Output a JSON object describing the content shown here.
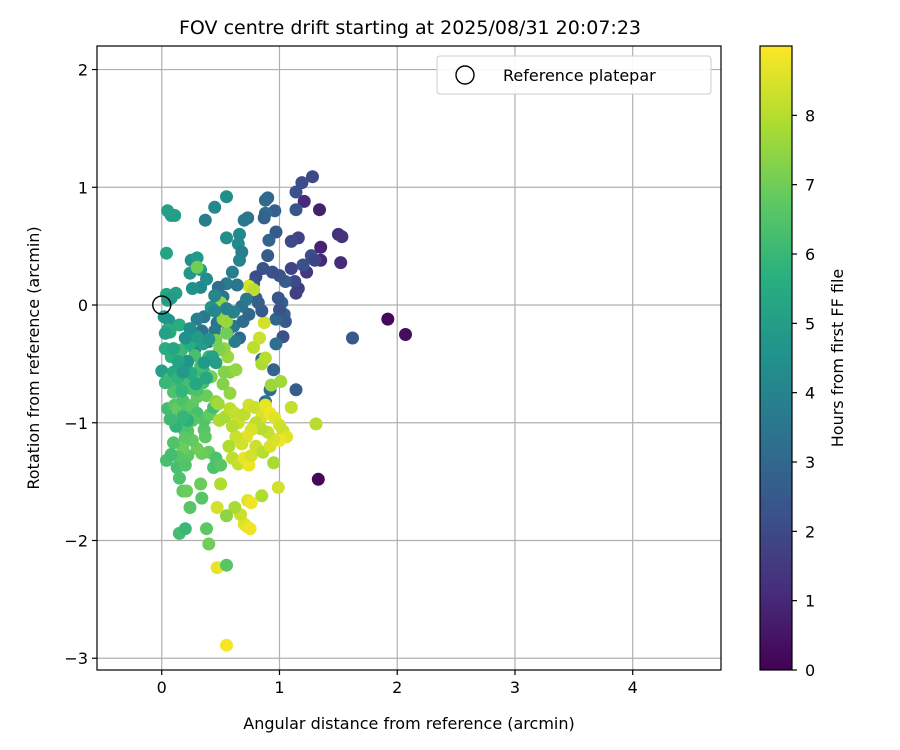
{
  "chart_data": {
    "type": "scatter",
    "title": "FOV centre drift starting at 2025/08/31 20:07:23",
    "xlabel": "Angular distance from reference (arcmin)",
    "ylabel": "Rotation from reference (arcmin)",
    "xlim": [
      -0.55,
      4.75
    ],
    "ylim": [
      -3.1,
      2.2
    ],
    "xticks": [
      0,
      1,
      2,
      3,
      4
    ],
    "yticks": [
      -3,
      -2,
      -1,
      0,
      1,
      2
    ],
    "grid": true,
    "legend": {
      "placement": "top-right",
      "entries": [
        {
          "label": "Reference platepar",
          "marker": "open-circle",
          "x": 0,
          "y": 0
        }
      ]
    },
    "colorbar": {
      "label": "Hours from first FF file",
      "colormap": "viridis",
      "range": [
        0,
        9
      ],
      "ticks": [
        0,
        1,
        2,
        3,
        4,
        5,
        6,
        7,
        8
      ],
      "color_stops": [
        "#440154",
        "#472d7b",
        "#3b528b",
        "#2c728e",
        "#21918c",
        "#28ae80",
        "#5ec962",
        "#addc30",
        "#fde725"
      ]
    },
    "points": [
      [
        1.92,
        -0.12,
        0.2
      ],
      [
        2.07,
        -0.25,
        0.3
      ],
      [
        1.33,
        -1.48,
        0.2
      ],
      [
        1.34,
        0.81,
        0.8
      ],
      [
        1.35,
        0.49,
        0.9
      ],
      [
        1.35,
        0.38,
        1.0
      ],
      [
        1.5,
        0.6,
        1.2
      ],
      [
        1.53,
        0.58,
        1.3
      ],
      [
        1.52,
        0.36,
        1.1
      ],
      [
        1.21,
        0.88,
        1.1
      ],
      [
        1.28,
        1.09,
        2.0
      ],
      [
        1.19,
        1.04,
        2.1
      ],
      [
        1.14,
        0.96,
        2.3
      ],
      [
        1.14,
        0.81,
        2.4
      ],
      [
        1.16,
        0.57,
        1.8
      ],
      [
        1.1,
        0.54,
        2.0
      ],
      [
        1.62,
        -0.28,
        2.5
      ],
      [
        1.23,
        0.28,
        1.5
      ],
      [
        1.16,
        0.14,
        1.6
      ],
      [
        1.1,
        0.31,
        1.8
      ],
      [
        1.13,
        0.2,
        2.0
      ],
      [
        1.2,
        0.34,
        2.2
      ],
      [
        1.27,
        0.42,
        2.1
      ],
      [
        1.3,
        0.38,
        1.9
      ],
      [
        1.14,
        0.1,
        1.7
      ],
      [
        1.05,
        0.2,
        2.6
      ],
      [
        1.0,
        0.25,
        2.4
      ],
      [
        0.94,
        0.28,
        2.2
      ],
      [
        0.97,
        0.62,
        2.5
      ],
      [
        0.96,
        0.8,
        2.7
      ],
      [
        0.9,
        0.91,
        3.0
      ],
      [
        0.88,
        0.89,
        3.1
      ],
      [
        0.88,
        0.78,
        3.2
      ],
      [
        0.87,
        0.74,
        2.8
      ],
      [
        0.91,
        0.55,
        2.9
      ],
      [
        0.9,
        0.42,
        2.6
      ],
      [
        0.86,
        0.31,
        2.3
      ],
      [
        0.8,
        0.24,
        2.1
      ],
      [
        0.78,
        0.18,
        2.4
      ],
      [
        1.02,
        0.02,
        2.8
      ],
      [
        1.04,
        -0.08,
        2.9
      ],
      [
        1.05,
        -0.14,
        2.5
      ],
      [
        1.03,
        -0.27,
        2.2
      ],
      [
        0.97,
        -0.12,
        3.0
      ],
      [
        0.97,
        -0.33,
        3.3
      ],
      [
        1.14,
        -0.72,
        2.6
      ],
      [
        0.95,
        -0.55,
        2.9
      ],
      [
        0.92,
        -0.72,
        3.1
      ],
      [
        0.88,
        -0.82,
        3.4
      ],
      [
        0.85,
        -0.46,
        3.3
      ],
      [
        0.8,
        0.06,
        2.5
      ],
      [
        0.73,
        0.74,
        3.4
      ],
      [
        0.7,
        0.72,
        3.6
      ],
      [
        0.66,
        0.6,
        4.2
      ],
      [
        0.65,
        0.52,
        4.3
      ],
      [
        0.55,
        0.92,
        4.4
      ],
      [
        0.45,
        0.83,
        4.2
      ],
      [
        0.37,
        0.72,
        3.8
      ],
      [
        0.55,
        0.57,
        4.4
      ],
      [
        0.66,
        0.38,
        4.0
      ],
      [
        0.6,
        0.28,
        3.8
      ],
      [
        0.55,
        0.18,
        3.7
      ],
      [
        0.48,
        0.15,
        3.2
      ],
      [
        0.52,
        0.07,
        3.5
      ],
      [
        0.56,
        -0.05,
        3.3
      ],
      [
        0.61,
        -0.18,
        3.6
      ],
      [
        0.69,
        -0.14,
        3.2
      ],
      [
        0.74,
        -0.08,
        3.0
      ],
      [
        0.66,
        -0.28,
        3.1
      ],
      [
        0.62,
        -0.31,
        3.7
      ],
      [
        0.56,
        -0.22,
        3.9
      ],
      [
        0.47,
        -0.15,
        3.4
      ],
      [
        0.45,
        -0.22,
        3.6
      ],
      [
        0.4,
        -0.31,
        3.8
      ],
      [
        0.36,
        -0.1,
        3.6
      ],
      [
        0.34,
        -0.22,
        3.4
      ],
      [
        0.3,
        -0.12,
        3.9
      ],
      [
        0.28,
        -0.38,
        4.3
      ],
      [
        0.33,
        0.15,
        4.2
      ],
      [
        0.26,
        0.14,
        4.5
      ],
      [
        0.25,
        0.38,
        4.5
      ],
      [
        0.3,
        0.4,
        4.8
      ],
      [
        0.33,
        0.3,
        4.9
      ],
      [
        0.38,
        0.22,
        4.4
      ],
      [
        0.24,
        0.27,
        4.7
      ],
      [
        0.08,
        0.76,
        5.1
      ],
      [
        0.11,
        0.76,
        5.0
      ],
      [
        0.05,
        0.8,
        5.1
      ],
      [
        0.04,
        0.44,
        5.2
      ],
      [
        0.12,
        0.1,
        5.1
      ],
      [
        0.04,
        0.09,
        5.3
      ],
      [
        0.05,
        0.04,
        5.0
      ],
      [
        0.08,
        0.06,
        4.9
      ],
      [
        0.02,
        -0.1,
        4.7
      ],
      [
        0.06,
        -0.13,
        4.6
      ],
      [
        0.05,
        -0.21,
        5.6
      ],
      [
        0.15,
        -0.17,
        5.6
      ],
      [
        0.03,
        -0.37,
        5.6
      ],
      [
        0.08,
        -0.44,
        5.7
      ],
      [
        0.0,
        -0.56,
        5.0
      ],
      [
        0.12,
        -0.56,
        5.5
      ],
      [
        0.17,
        -0.38,
        6.0
      ],
      [
        0.24,
        -0.33,
        5.6
      ],
      [
        0.28,
        -0.43,
        6.3
      ],
      [
        0.21,
        -0.53,
        6.1
      ],
      [
        0.17,
        -0.46,
        6.1
      ],
      [
        0.2,
        -0.58,
        6.5
      ],
      [
        0.25,
        -0.71,
        6.3
      ],
      [
        0.23,
        -0.62,
        6.2
      ],
      [
        0.16,
        -0.67,
        6.3
      ],
      [
        0.12,
        -0.7,
        6.1
      ],
      [
        0.1,
        -0.74,
        6.4
      ],
      [
        0.07,
        -0.62,
        6.2
      ],
      [
        0.03,
        -0.66,
        6.0
      ],
      [
        0.05,
        -0.88,
        6.2
      ],
      [
        0.07,
        -0.97,
        6.4
      ],
      [
        0.11,
        -0.85,
        6.6
      ],
      [
        0.14,
        -0.88,
        6.8
      ],
      [
        0.18,
        -0.81,
        6.4
      ],
      [
        0.22,
        -0.9,
        6.5
      ],
      [
        0.26,
        -0.85,
        6.7
      ],
      [
        0.3,
        -0.92,
        6.3
      ],
      [
        0.3,
        -0.78,
        6.8
      ],
      [
        0.32,
        -0.63,
        6.6
      ],
      [
        0.35,
        -0.66,
        6.2
      ],
      [
        0.36,
        -0.57,
        6.0
      ],
      [
        0.38,
        -0.77,
        6.9
      ],
      [
        0.36,
        -0.98,
        6.5
      ],
      [
        0.36,
        -1.06,
        6.6
      ],
      [
        0.37,
        -1.12,
        6.7
      ],
      [
        0.4,
        -1.25,
        6.8
      ],
      [
        0.34,
        -1.26,
        6.9
      ],
      [
        0.3,
        -1.22,
        7.0
      ],
      [
        0.26,
        -1.15,
        6.8
      ],
      [
        0.22,
        -1.07,
        6.6
      ],
      [
        0.19,
        -1.06,
        6.4
      ],
      [
        0.2,
        -1.13,
        6.7
      ],
      [
        0.22,
        -1.28,
        6.7
      ],
      [
        0.18,
        -1.22,
        6.9
      ],
      [
        0.14,
        -1.29,
        6.6
      ],
      [
        0.1,
        -1.17,
        6.5
      ],
      [
        0.04,
        -1.32,
        6.3
      ],
      [
        0.08,
        -1.27,
        6.2
      ],
      [
        0.13,
        -1.38,
        6.3
      ],
      [
        0.15,
        -1.47,
        6.4
      ],
      [
        0.2,
        -1.36,
        6.5
      ],
      [
        0.18,
        -1.58,
        6.7
      ],
      [
        0.21,
        -1.58,
        6.9
      ],
      [
        0.24,
        -1.72,
        6.6
      ],
      [
        0.15,
        -1.94,
        6.2
      ],
      [
        0.2,
        -1.9,
        6.0
      ],
      [
        0.34,
        -1.64,
        6.6
      ],
      [
        0.38,
        -1.9,
        6.7
      ],
      [
        0.4,
        -2.03,
        7.0
      ],
      [
        0.33,
        -1.52,
        6.9
      ],
      [
        0.44,
        -1.38,
        6.4
      ],
      [
        0.46,
        -1.3,
        6.4
      ],
      [
        0.5,
        -1.36,
        6.6
      ],
      [
        0.41,
        -0.93,
        6.8
      ],
      [
        0.44,
        -0.87,
        6.2
      ],
      [
        0.46,
        -0.82,
        7.4
      ],
      [
        0.53,
        -0.57,
        7.3
      ],
      [
        0.56,
        -0.44,
        7.6
      ],
      [
        0.53,
        -0.37,
        7.5
      ],
      [
        0.49,
        -0.38,
        7.2
      ],
      [
        0.46,
        -0.3,
        7.1
      ],
      [
        0.52,
        -0.12,
        7.4
      ],
      [
        0.55,
        -0.24,
        7.0
      ],
      [
        0.58,
        -0.57,
        7.3
      ],
      [
        0.58,
        -0.75,
        7.5
      ],
      [
        0.52,
        -0.67,
        7.3
      ],
      [
        0.48,
        -0.84,
        7.7
      ],
      [
        0.49,
        -0.98,
        7.9
      ],
      [
        0.54,
        -0.95,
        7.8
      ],
      [
        0.58,
        -0.88,
        8.1
      ],
      [
        0.62,
        -0.92,
        8.2
      ],
      [
        0.65,
        -1.0,
        8.3
      ],
      [
        0.7,
        -0.93,
        8.1
      ],
      [
        0.74,
        -0.85,
        8.4
      ],
      [
        0.79,
        -0.87,
        8.3
      ],
      [
        0.85,
        -0.95,
        8.5
      ],
      [
        0.88,
        -0.85,
        8.7
      ],
      [
        0.92,
        -0.92,
        8.8
      ],
      [
        0.96,
        -0.96,
        8.6
      ],
      [
        1.0,
        -1.02,
        8.4
      ],
      [
        1.03,
        -1.07,
        8.3
      ],
      [
        1.06,
        -1.12,
        8.6
      ],
      [
        1.0,
        -1.15,
        8.8
      ],
      [
        0.95,
        -1.14,
        8.5
      ],
      [
        0.9,
        -1.08,
        8.2
      ],
      [
        0.84,
        -1.05,
        8.0
      ],
      [
        0.8,
        -1.0,
        8.1
      ],
      [
        0.76,
        -1.06,
        8.5
      ],
      [
        0.72,
        -1.12,
        8.6
      ],
      [
        0.68,
        -1.18,
        8.4
      ],
      [
        0.63,
        -1.12,
        8.3
      ],
      [
        0.6,
        -1.03,
        8.0
      ],
      [
        0.57,
        -1.2,
        7.9
      ],
      [
        0.6,
        -1.3,
        8.1
      ],
      [
        0.65,
        -1.35,
        8.2
      ],
      [
        0.7,
        -1.3,
        8.7
      ],
      [
        0.74,
        -1.36,
        8.8
      ],
      [
        0.76,
        -1.28,
        8.4
      ],
      [
        0.8,
        -1.2,
        8.3
      ],
      [
        0.86,
        -1.25,
        8.0
      ],
      [
        0.92,
        -1.2,
        8.5
      ],
      [
        0.95,
        -1.34,
        7.8
      ],
      [
        0.99,
        -1.55,
        8.4
      ],
      [
        0.85,
        -1.62,
        7.9
      ],
      [
        0.73,
        -1.66,
        8.6
      ],
      [
        0.76,
        -1.68,
        8.8
      ],
      [
        0.72,
        -1.88,
        8.9
      ],
      [
        0.7,
        -1.86,
        8.6
      ],
      [
        0.75,
        -1.9,
        8.8
      ],
      [
        0.67,
        -1.78,
        8.3
      ],
      [
        0.62,
        -1.72,
        7.8
      ],
      [
        0.55,
        -1.79,
        7.4
      ],
      [
        0.47,
        -1.72,
        8.4
      ],
      [
        0.5,
        -1.52,
        7.9
      ],
      [
        0.47,
        -2.23,
        8.7
      ],
      [
        0.55,
        -2.21,
        6.6
      ],
      [
        0.55,
        -2.89,
        8.9
      ],
      [
        1.31,
        -1.01,
        8.0
      ],
      [
        1.1,
        -0.87,
        8.2
      ],
      [
        1.01,
        -0.65,
        7.7
      ],
      [
        0.93,
        -0.68,
        7.6
      ],
      [
        0.85,
        -0.5,
        7.8
      ],
      [
        0.88,
        -0.45,
        8.0
      ],
      [
        0.78,
        -0.36,
        8.1
      ],
      [
        0.83,
        -0.28,
        8.3
      ],
      [
        0.87,
        -0.15,
        8.4
      ],
      [
        0.74,
        0.16,
        8.5
      ],
      [
        0.78,
        0.13,
        8.1
      ],
      [
        0.5,
        0.02,
        7.5
      ],
      [
        0.3,
        0.32,
        7.0
      ],
      [
        0.55,
        -0.14,
        7.6
      ],
      [
        0.63,
        -0.55,
        7.5
      ],
      [
        0.42,
        -0.61,
        7.1
      ],
      [
        0.4,
        -0.44,
        6.0
      ],
      [
        0.33,
        -0.52,
        6.2
      ],
      [
        0.3,
        -0.72,
        6.4
      ],
      [
        0.26,
        -0.98,
        6.6
      ],
      [
        0.22,
        -0.98,
        5.7
      ],
      [
        0.18,
        -0.95,
        5.9
      ],
      [
        0.12,
        -1.03,
        5.8
      ],
      [
        0.08,
        -0.97,
        6.1
      ],
      [
        0.1,
        -0.57,
        5.4
      ],
      [
        0.14,
        -0.62,
        5.8
      ],
      [
        0.17,
        -0.73,
        5.9
      ],
      [
        0.25,
        -0.58,
        5.5
      ],
      [
        0.29,
        -0.67,
        5.3
      ],
      [
        0.38,
        -0.62,
        5.4
      ],
      [
        0.43,
        -0.44,
        5.2
      ],
      [
        0.46,
        -0.49,
        5.0
      ],
      [
        0.36,
        -0.49,
        4.8
      ],
      [
        0.3,
        -0.27,
        4.9
      ],
      [
        0.35,
        -0.33,
        5.0
      ],
      [
        0.42,
        -0.02,
        4.7
      ],
      [
        0.45,
        0.08,
        4.1
      ],
      [
        0.64,
        0.17,
        3.5
      ],
      [
        0.68,
        -0.01,
        3.4
      ],
      [
        0.72,
        0.05,
        3.6
      ],
      [
        0.68,
        0.45,
        3.9
      ],
      [
        0.82,
        0.02,
        2.8
      ],
      [
        0.85,
        -0.05,
        2.6
      ],
      [
        1.0,
        -0.04,
        2.3
      ],
      [
        0.99,
        0.06,
        2.4
      ],
      [
        0.55,
        -0.03,
        3.9
      ],
      [
        0.61,
        -0.06,
        4.0
      ],
      [
        0.45,
        -0.05,
        4.1
      ],
      [
        0.4,
        -0.29,
        4.6
      ],
      [
        0.24,
        -0.2,
        4.4
      ],
      [
        0.2,
        -0.28,
        4.5
      ],
      [
        0.22,
        -0.48,
        4.6
      ],
      [
        0.18,
        -0.57,
        4.8
      ],
      [
        0.14,
        -0.48,
        5.2
      ],
      [
        0.1,
        -0.37,
        5.3
      ],
      [
        0.07,
        -0.23,
        5.5
      ],
      [
        0.03,
        -0.24,
        5.1
      ]
    ]
  }
}
